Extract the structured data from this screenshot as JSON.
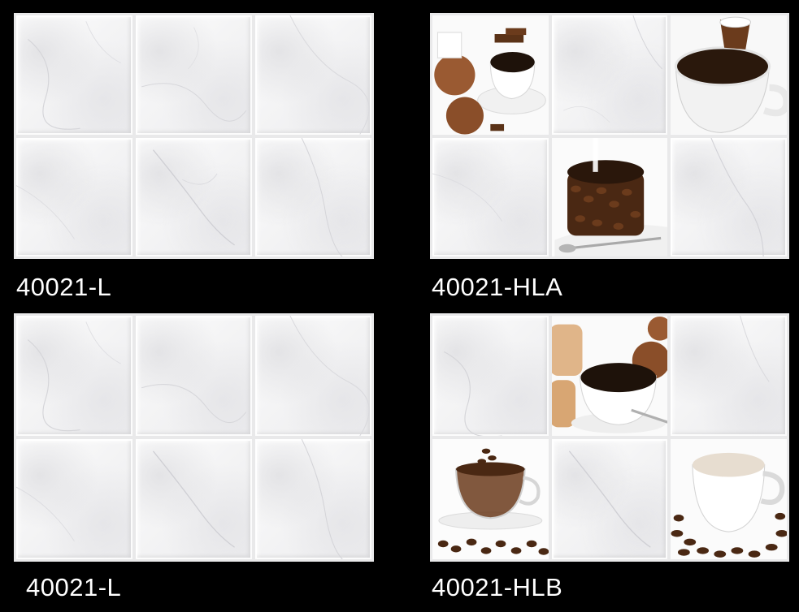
{
  "colors": {
    "background": "#000000",
    "tile": "#f3f3f4",
    "grout": "#e2e2e4",
    "coffee": "#3a1f0f",
    "bean": "#5a3217",
    "cake": "#9a5a32"
  },
  "panels": [
    {
      "label": "40021-L",
      "tiles": [
        "marble",
        "marble",
        "marble",
        "marble",
        "marble",
        "marble"
      ]
    },
    {
      "label": "40021-HLA",
      "tiles": [
        "muffin-coffee-cup-icon",
        "marble",
        "coffee-cup-spoon-icon",
        "marble",
        "bean-cake-icon",
        "marble"
      ]
    },
    {
      "label": "40021-L",
      "tiles": [
        "marble",
        "marble",
        "marble",
        "marble",
        "marble",
        "marble"
      ]
    },
    {
      "label": "40021-HLB",
      "tiles": [
        "marble",
        "bread-coffee-cup-icon",
        "marble",
        "glass-cup-beans-icon",
        "marble",
        "white-cup-beans-icon"
      ]
    }
  ]
}
